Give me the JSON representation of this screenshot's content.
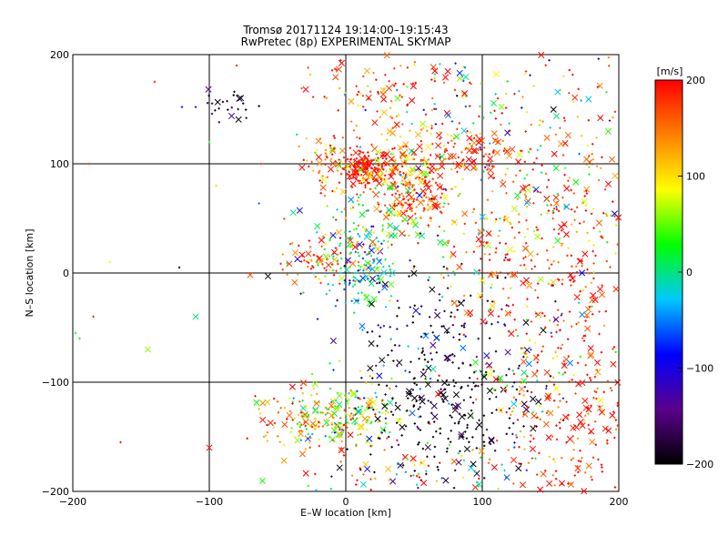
{
  "chart_data": {
    "type": "scatter",
    "title": "Tromsø 20171124 19:14:00–19:15:43",
    "subtitle": "RwPretec (8p) EXPERIMENTAL SKYMAP",
    "xlabel": "E–W location [km]",
    "ylabel": "N–S location [km]",
    "xlim": [
      -200,
      200
    ],
    "ylim": [
      -200,
      200
    ],
    "xticks": [
      -200,
      -100,
      0,
      100,
      200
    ],
    "yticks": [
      -200,
      -100,
      0,
      100,
      200
    ],
    "x_tick_labels": [
      "−200",
      "−100",
      "0",
      "100",
      "200"
    ],
    "y_tick_labels": [
      "−200",
      "−100",
      "0",
      "100",
      "200"
    ],
    "grid": true,
    "gridlines": [
      -100,
      0,
      100
    ],
    "colorbar": {
      "label": "[m/s]",
      "range": [
        -200,
        200
      ],
      "ticks": [
        200,
        100,
        0,
        -100,
        -200
      ],
      "tick_labels": [
        "200",
        "100",
        "0",
        "−100",
        "−200"
      ],
      "colormap": [
        "#000000",
        "#5a008c",
        "#0000ff",
        "#00c8ff",
        "#00ff00",
        "#ffff00",
        "#ff8000",
        "#ff0000"
      ]
    },
    "markers": {
      "small": "dot",
      "large": "x"
    },
    "clusters": [
      {
        "x": 15,
        "y": 97,
        "rx": 10,
        "ry": 8,
        "n": 160,
        "v": 195,
        "spread": 10
      },
      {
        "x": 45,
        "y": 73,
        "rx": 18,
        "ry": 16,
        "n": 190,
        "v": 170,
        "spread": 40
      },
      {
        "x": 40,
        "y": 95,
        "rx": 22,
        "ry": 14,
        "n": 100,
        "v": 110,
        "spread": 60
      },
      {
        "x": -12,
        "y": 100,
        "rx": 10,
        "ry": 12,
        "n": 55,
        "v": 150,
        "spread": 50
      },
      {
        "x": 95,
        "y": 110,
        "rx": 25,
        "ry": 12,
        "n": 90,
        "v": 180,
        "spread": 30
      },
      {
        "x": 10,
        "y": 5,
        "rx": 14,
        "ry": 22,
        "n": 150,
        "v": -20,
        "spread": 60
      },
      {
        "x": 15,
        "y": 40,
        "rx": 25,
        "ry": 20,
        "n": 110,
        "v": 40,
        "spread": 80
      },
      {
        "x": -25,
        "y": 12,
        "rx": 15,
        "ry": 12,
        "n": 60,
        "v": 170,
        "spread": 40
      },
      {
        "x": 0,
        "y": -128,
        "rx": 25,
        "ry": 18,
        "n": 210,
        "v": 70,
        "spread": 80
      },
      {
        "x": -30,
        "y": -140,
        "rx": 20,
        "ry": 12,
        "n": 70,
        "v": 150,
        "spread": 50
      },
      {
        "x": 75,
        "y": -120,
        "rx": 30,
        "ry": 35,
        "n": 230,
        "v": -195,
        "spread": 20
      },
      {
        "x": 70,
        "y": -50,
        "rx": 35,
        "ry": 35,
        "n": 120,
        "v": -150,
        "spread": 80
      },
      {
        "x": 160,
        "y": -20,
        "rx": 40,
        "ry": 80,
        "n": 330,
        "v": 185,
        "spread": 40
      },
      {
        "x": 160,
        "y": 60,
        "rx": 40,
        "ry": 35,
        "n": 150,
        "v": 120,
        "spread": 80
      },
      {
        "x": 100,
        "y": 150,
        "rx": 50,
        "ry": 35,
        "n": 170,
        "v": 60,
        "spread": 120
      },
      {
        "x": 25,
        "y": 165,
        "rx": 30,
        "ry": 25,
        "n": 100,
        "v": 180,
        "spread": 50
      },
      {
        "x": 170,
        "y": -150,
        "rx": 25,
        "ry": 40,
        "n": 150,
        "v": 180,
        "spread": 40
      },
      {
        "x": 110,
        "y": 20,
        "rx": 30,
        "ry": 30,
        "n": 80,
        "v": 130,
        "spread": 100
      },
      {
        "x": -85,
        "y": 155,
        "rx": 10,
        "ry": 10,
        "n": 25,
        "v": -190,
        "spread": 20
      },
      {
        "x": 140,
        "y": -100,
        "rx": 30,
        "ry": 40,
        "n": 90,
        "v": 60,
        "spread": 140
      },
      {
        "x": 40,
        "y": -185,
        "rx": 45,
        "ry": 12,
        "n": 90,
        "v": 100,
        "spread": 150
      }
    ],
    "sparse_points": [
      {
        "x": -188,
        "y": 100,
        "v": 190
      },
      {
        "x": -185,
        "y": -40,
        "v": 190
      },
      {
        "x": -198,
        "y": -55,
        "v": 30
      },
      {
        "x": -195,
        "y": -60,
        "v": 30
      },
      {
        "x": -173,
        "y": 10,
        "v": 80
      },
      {
        "x": -165,
        "y": -155,
        "v": 190
      },
      {
        "x": -122,
        "y": 5,
        "v": -190
      },
      {
        "x": -120,
        "y": 152,
        "v": -80
      },
      {
        "x": -110,
        "y": 152,
        "v": -80
      },
      {
        "x": -100,
        "y": 120,
        "v": 30
      },
      {
        "x": -95,
        "y": 80,
        "v": 100
      },
      {
        "x": -110,
        "y": -40,
        "v": 0
      },
      {
        "x": -145,
        "y": -70,
        "v": 60
      },
      {
        "x": -62,
        "y": 100,
        "v": 190
      },
      {
        "x": -57,
        "y": -3,
        "v": -190
      },
      {
        "x": -80,
        "y": 190,
        "v": 190
      },
      {
        "x": -100,
        "y": -160,
        "v": 190
      },
      {
        "x": -140,
        "y": 175,
        "v": 190
      }
    ]
  }
}
